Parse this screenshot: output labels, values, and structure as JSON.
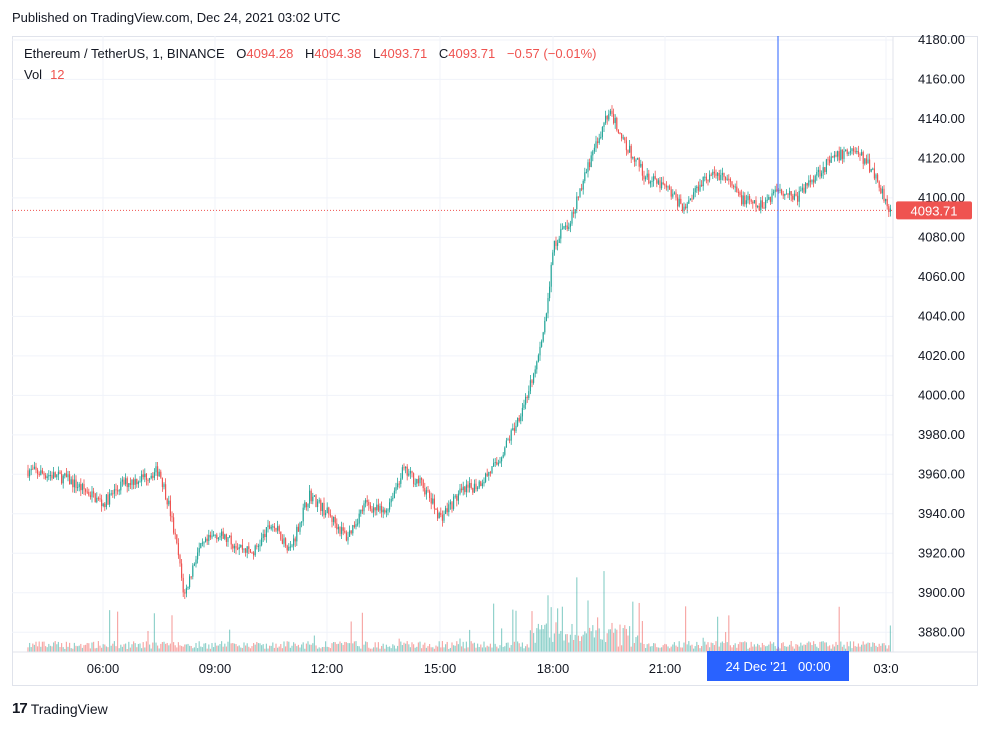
{
  "header": {
    "published": "Published on TradingView.com, Dec 24, 2021 03:02 UTC"
  },
  "legend": {
    "symbol": "Ethereum / TetherUS, 1, BINANCE",
    "o_label": "O",
    "o_value": "4094.28",
    "h_label": "H",
    "h_value": "4094.38",
    "l_label": "L",
    "l_value": "4093.71",
    "c_label": "C",
    "c_value": "4093.71",
    "change": "−0.57 (−0.01%)",
    "vol_label": "Vol",
    "vol_value": "12"
  },
  "crosshair": {
    "label": "24 Dec '21   00:00"
  },
  "last_price_label": "4093.71",
  "footer": {
    "brand": "TradingView",
    "logo_mark": "17"
  },
  "colors": {
    "up": "#26a69a",
    "down": "#ef5350",
    "crosshair": "#2962ff",
    "grid": "#f0f3fa"
  },
  "chart_data": {
    "type": "candlestick",
    "y_ticks": [
      "3880.00",
      "3900.00",
      "3920.00",
      "3940.00",
      "3960.00",
      "3980.00",
      "4000.00",
      "4020.00",
      "4040.00",
      "4060.00",
      "4080.00",
      "4100.00",
      "4120.00",
      "4140.00",
      "4160.00",
      "4180.00"
    ],
    "x_ticks": [
      "06:00",
      "09:00",
      "12:00",
      "15:00",
      "18:00",
      "21:00",
      "00:00",
      "03:0"
    ],
    "ylim": [
      3870,
      4182
    ],
    "last_price": 4093.71,
    "price_path": [
      {
        "t": "04:00",
        "v": 3962
      },
      {
        "t": "05:00",
        "v": 3958
      },
      {
        "t": "05:40",
        "v": 3950
      },
      {
        "t": "06:00",
        "v": 3945
      },
      {
        "t": "06:30",
        "v": 3955
      },
      {
        "t": "07:00",
        "v": 3958
      },
      {
        "t": "07:30",
        "v": 3962
      },
      {
        "t": "07:45",
        "v": 3945
      },
      {
        "t": "08:00",
        "v": 3920
      },
      {
        "t": "08:10",
        "v": 3898
      },
      {
        "t": "08:30",
        "v": 3920
      },
      {
        "t": "09:00",
        "v": 3930
      },
      {
        "t": "10:00",
        "v": 3920
      },
      {
        "t": "10:30",
        "v": 3935
      },
      {
        "t": "11:00",
        "v": 3922
      },
      {
        "t": "11:30",
        "v": 3950
      },
      {
        "t": "12:00",
        "v": 3940
      },
      {
        "t": "12:30",
        "v": 3928
      },
      {
        "t": "13:00",
        "v": 3945
      },
      {
        "t": "13:30",
        "v": 3940
      },
      {
        "t": "14:00",
        "v": 3962
      },
      {
        "t": "14:30",
        "v": 3955
      },
      {
        "t": "15:00",
        "v": 3938
      },
      {
        "t": "15:30",
        "v": 3950
      },
      {
        "t": "16:00",
        "v": 3955
      },
      {
        "t": "16:30",
        "v": 3965
      },
      {
        "t": "17:00",
        "v": 3985
      },
      {
        "t": "17:30",
        "v": 4010
      },
      {
        "t": "17:50",
        "v": 4040
      },
      {
        "t": "18:00",
        "v": 4075
      },
      {
        "t": "18:30",
        "v": 4090
      },
      {
        "t": "19:00",
        "v": 4120
      },
      {
        "t": "19:30",
        "v": 4145
      },
      {
        "t": "20:00",
        "v": 4125
      },
      {
        "t": "20:30",
        "v": 4110
      },
      {
        "t": "21:00",
        "v": 4105
      },
      {
        "t": "21:30",
        "v": 4095
      },
      {
        "t": "22:00",
        "v": 4110
      },
      {
        "t": "22:30",
        "v": 4112
      },
      {
        "t": "23:00",
        "v": 4100
      },
      {
        "t": "23:30",
        "v": 4095
      },
      {
        "t": "00:00",
        "v": 4105
      },
      {
        "t": "00:30",
        "v": 4100
      },
      {
        "t": "01:00",
        "v": 4112
      },
      {
        "t": "01:30",
        "v": 4120
      },
      {
        "t": "02:00",
        "v": 4125
      },
      {
        "t": "02:30",
        "v": 4115
      },
      {
        "t": "03:00",
        "v": 4093.71
      }
    ]
  }
}
